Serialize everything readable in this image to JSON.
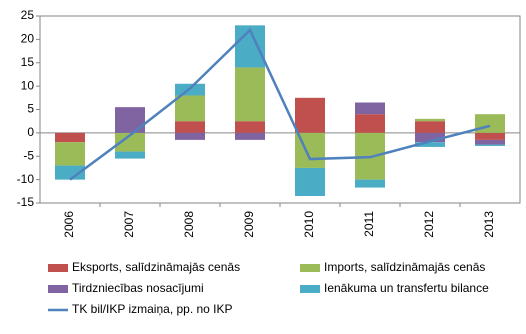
{
  "chart_data": {
    "type": "bar",
    "categories": [
      "2006",
      "2007",
      "2008",
      "2009",
      "2010",
      "2011",
      "2012",
      "2013"
    ],
    "stacked": true,
    "series": [
      {
        "name": "Eksports, salīdzināmajās cenās",
        "kind": "bar",
        "color": "#c0504d",
        "values": [
          -2,
          0,
          2.5,
          2.5,
          7.5,
          4,
          2.5,
          -1.5
        ]
      },
      {
        "name": "Imports, salīdzināmajās cenās",
        "kind": "bar",
        "color": "#9bbb59",
        "values": [
          -5,
          -4,
          5.5,
          11.5,
          -7.5,
          -10,
          0.5,
          4
        ]
      },
      {
        "name": "Tirdzniecības nosacījumi",
        "kind": "bar",
        "color": "#8064a2",
        "values": [
          0,
          5.5,
          -1.5,
          -1.5,
          0,
          2.5,
          -2,
          -1
        ]
      },
      {
        "name": "Ienākuma un transfertu bilance",
        "kind": "bar",
        "color": "#4bacc6",
        "values": [
          -3,
          -1.5,
          2.5,
          9,
          -6,
          -1.7,
          -1,
          -0.3
        ]
      },
      {
        "name": "TK bil/IKP izmaiņa, pp. no IKP",
        "kind": "line",
        "color": "#4f81bd",
        "values": [
          -10,
          -0.5,
          9.5,
          22,
          -5.6,
          -5.2,
          -1.8,
          1.5
        ]
      }
    ],
    "ylim": [
      -15,
      25
    ],
    "yticks": [
      -15,
      -10,
      -5,
      0,
      5,
      10,
      15,
      20,
      25
    ],
    "grid": false
  }
}
